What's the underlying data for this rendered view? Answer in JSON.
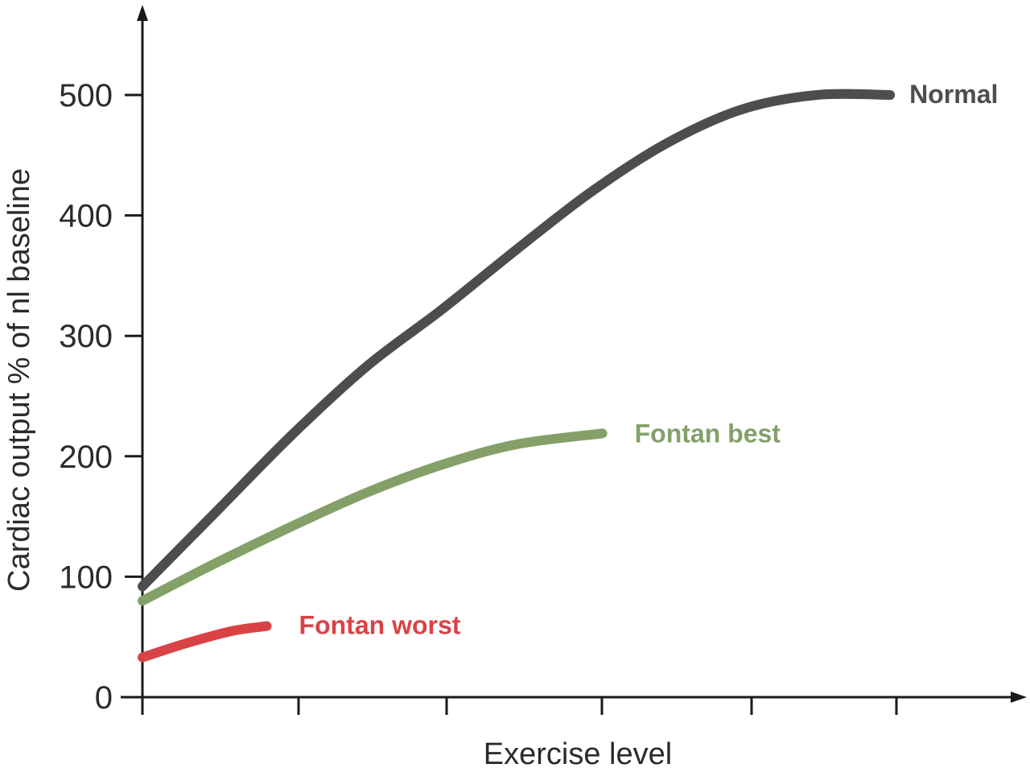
{
  "chart_data": {
    "type": "line",
    "xlabel": "Exercise level",
    "ylabel": "Cardiac output % of nl baseline",
    "ylim": [
      0,
      500
    ],
    "yticks": [
      "0",
      "100",
      "200",
      "300",
      "400",
      "500"
    ],
    "xlim": [
      0,
      5
    ],
    "xticks": [
      0,
      1,
      2,
      3,
      4,
      5
    ],
    "grid": false,
    "series": [
      {
        "name": "Normal",
        "color": "#4d4d4f",
        "x": [
          0,
          0.5,
          1,
          1.5,
          2,
          2.5,
          3,
          3.5,
          4,
          4.5,
          4.99
        ],
        "y": [
          92,
          155,
          218,
          275,
          322,
          372,
          420,
          460,
          488,
          500,
          500
        ]
      },
      {
        "name": "Fontan best",
        "color": "#84a068",
        "x": [
          0,
          0.5,
          1,
          1.5,
          2,
          2.5,
          3.07
        ],
        "y": [
          80,
          112,
          142,
          170,
          193,
          210,
          219
        ]
      },
      {
        "name": "Fontan worst",
        "color": "#d94346",
        "x": [
          0,
          0.3,
          0.6,
          0.83
        ],
        "y": [
          33,
          45,
          55,
          59
        ]
      }
    ]
  }
}
